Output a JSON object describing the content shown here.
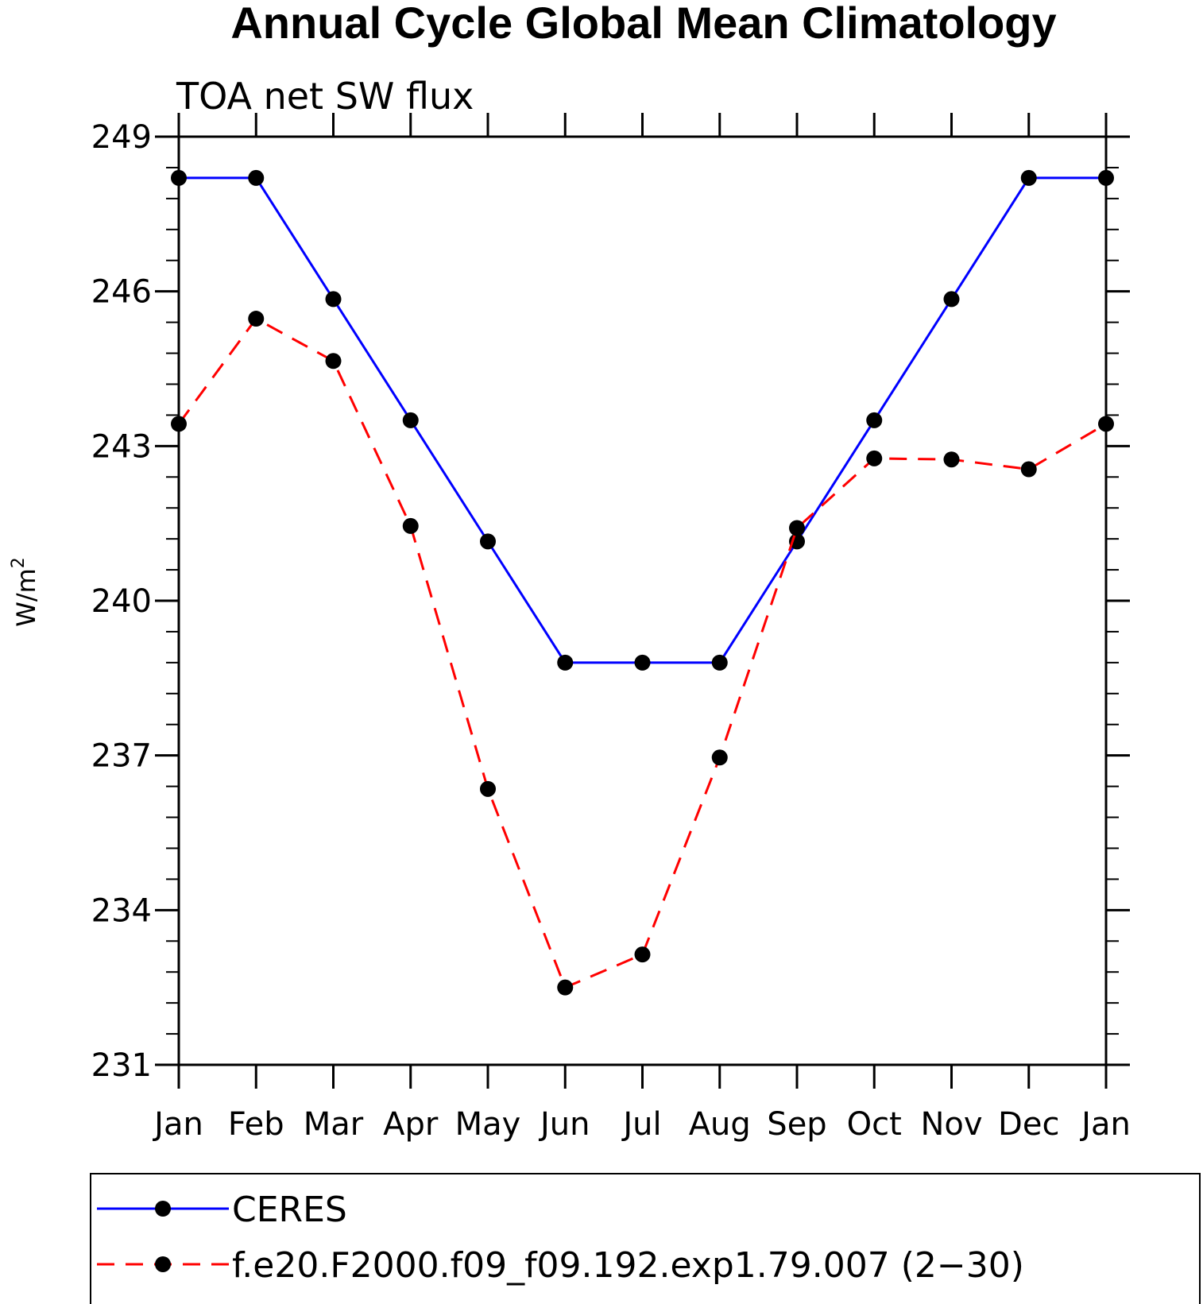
{
  "chart_data": {
    "type": "line",
    "title": "Annual Cycle Global Mean Climatology",
    "subtitle": "TOA net SW flux",
    "ylabel_base": "W/m",
    "ylabel_sup": "2",
    "categories": [
      "Jan",
      "Feb",
      "Mar",
      "Apr",
      "May",
      "Jun",
      "Jul",
      "Aug",
      "Sep",
      "Oct",
      "Nov",
      "Dec",
      "Jan"
    ],
    "ylim": [
      231,
      249
    ],
    "yticks": [
      231,
      234,
      237,
      240,
      243,
      246,
      249
    ],
    "series": [
      {
        "name": "CERES",
        "color": "#0000ff",
        "dash": "solid",
        "values": [
          248.2,
          248.2,
          245.85,
          243.5,
          241.15,
          238.8,
          238.8,
          238.8,
          241.15,
          243.5,
          245.85,
          248.2,
          248.2
        ]
      },
      {
        "name": "f.e20.F2000.f09_f09.192.exp1.79.007 (2−30)",
        "color": "#ff0000",
        "dash": "dashed",
        "values": [
          243.43,
          245.47,
          244.65,
          241.45,
          236.35,
          232.5,
          233.14,
          236.96,
          241.41,
          242.76,
          242.74,
          242.55,
          243.43
        ]
      }
    ]
  }
}
